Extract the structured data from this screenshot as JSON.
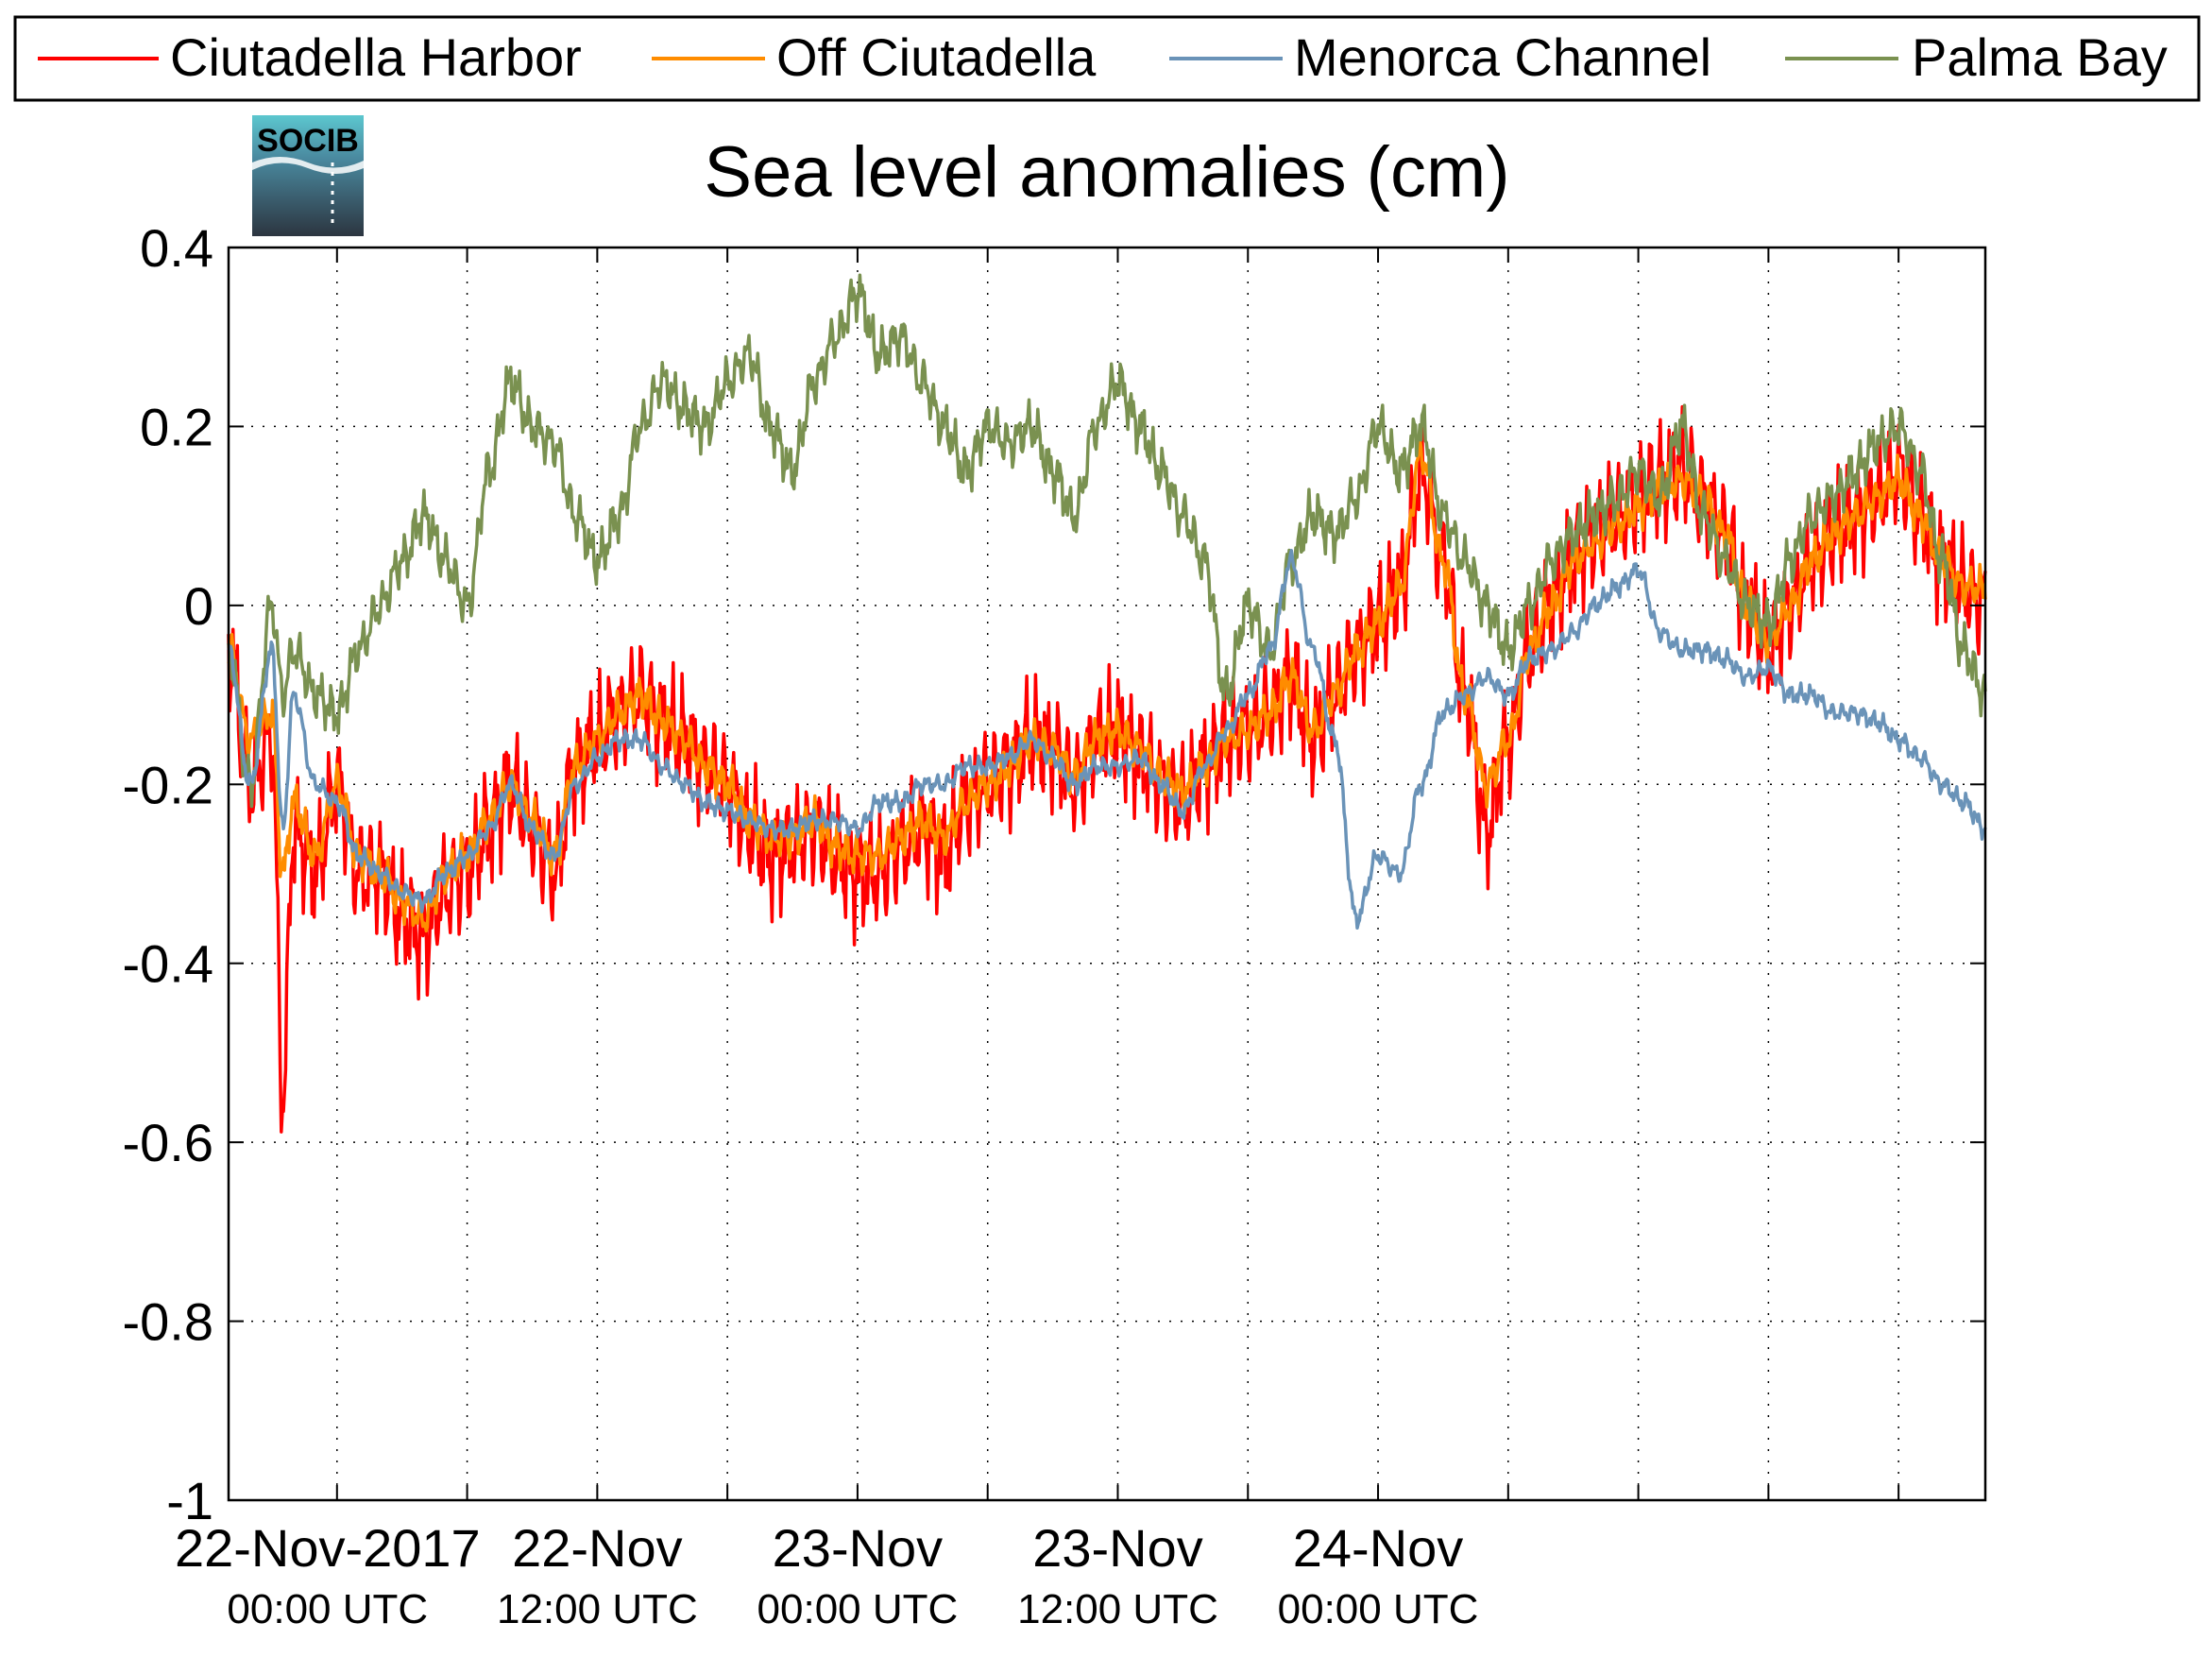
{
  "logo": {
    "text": "SOCIB"
  },
  "chart_data": {
    "type": "line",
    "title": "Sea level anomalies (cm)",
    "xlabel": "",
    "ylabel": "",
    "ylim": [
      -1,
      0.4
    ],
    "yticks": [
      0.4,
      0.2,
      0,
      -0.2,
      -0.4,
      -0.6,
      -0.8,
      -1
    ],
    "ytick_labels": [
      "0.4",
      "0.2",
      "0",
      "-0.2",
      "-0.4",
      "-0.6",
      "-0.8",
      "-1"
    ],
    "xlim_hours": [
      -5,
      76
    ],
    "xtick_hours": [
      0,
      12,
      24,
      36,
      48
    ],
    "xtick_labels": [
      {
        "date": "22-Nov-2017",
        "time": "00:00 UTC"
      },
      {
        "date": "22-Nov",
        "time": "12:00 UTC"
      },
      {
        "date": "23-Nov",
        "time": "00:00 UTC"
      },
      {
        "date": "23-Nov",
        "time": "12:00 UTC"
      },
      {
        "date": "24-Nov",
        "time": "00:00 UTC"
      }
    ],
    "grid": true,
    "legend_position": "top",
    "series": [
      {
        "name": "Ciutadella Harbor",
        "color": "#ff0000",
        "noise_amplitude": 0.07,
        "x": [
          -5,
          -4,
          -3,
          -2.5,
          -2,
          -1,
          0,
          1,
          2,
          3,
          4,
          5,
          6,
          7,
          8,
          9,
          10,
          11,
          12,
          13,
          14,
          15,
          16,
          17,
          18,
          19,
          20,
          21,
          22,
          23,
          24,
          25,
          26,
          27,
          28,
          29,
          30,
          31,
          32,
          33,
          34,
          35,
          36,
          37,
          38,
          39,
          40,
          41,
          42,
          43,
          44,
          45,
          46,
          47,
          48,
          49,
          50,
          51,
          52,
          53,
          54,
          55,
          56,
          57,
          58,
          59,
          60,
          61,
          62,
          63,
          64,
          65,
          66,
          67,
          68,
          69,
          70,
          71,
          72,
          73,
          74,
          75,
          76
        ],
        "y": [
          -0.05,
          -0.2,
          -0.15,
          -0.55,
          -0.25,
          -0.3,
          -0.2,
          -0.3,
          -0.3,
          -0.35,
          -0.37,
          -0.32,
          -0.3,
          -0.25,
          -0.2,
          -0.25,
          -0.3,
          -0.18,
          -0.15,
          -0.12,
          -0.1,
          -0.13,
          -0.15,
          -0.18,
          -0.2,
          -0.25,
          -0.28,
          -0.27,
          -0.25,
          -0.28,
          -0.3,
          -0.3,
          -0.27,
          -0.25,
          -0.28,
          -0.22,
          -0.2,
          -0.18,
          -0.15,
          -0.16,
          -0.2,
          -0.15,
          -0.14,
          -0.17,
          -0.2,
          -0.22,
          -0.18,
          -0.15,
          -0.14,
          -0.12,
          -0.08,
          -0.15,
          -0.1,
          -0.05,
          -0.02,
          0.02,
          0.15,
          0.05,
          -0.1,
          -0.25,
          -0.15,
          -0.05,
          0.0,
          0.05,
          0.08,
          0.1,
          0.12,
          0.14,
          0.15,
          0.12,
          0.08,
          0.0,
          -0.05,
          0.0,
          0.05,
          0.08,
          0.1,
          0.12,
          0.15,
          0.1,
          0.05,
          0.02,
          0.0
        ]
      },
      {
        "name": "Off Ciutadella",
        "color": "#ff8c00",
        "noise_amplitude": 0.025,
        "x": [
          -5,
          -4,
          -3,
          -2.5,
          -2,
          -1,
          0,
          1,
          2,
          3,
          4,
          5,
          6,
          7,
          8,
          9,
          10,
          11,
          12,
          13,
          14,
          15,
          16,
          17,
          18,
          19,
          20,
          21,
          22,
          23,
          24,
          25,
          26,
          27,
          28,
          29,
          30,
          31,
          32,
          33,
          34,
          35,
          36,
          37,
          38,
          39,
          40,
          41,
          42,
          43,
          44,
          45,
          46,
          47,
          48,
          49,
          50,
          51,
          52,
          53,
          54,
          55,
          56,
          57,
          58,
          59,
          60,
          61,
          62,
          63,
          64,
          65,
          66,
          67,
          68,
          69,
          70,
          71,
          72,
          73,
          74,
          75,
          76
        ],
        "y": [
          -0.05,
          -0.15,
          -0.12,
          -0.3,
          -0.22,
          -0.28,
          -0.2,
          -0.28,
          -0.3,
          -0.33,
          -0.35,
          -0.3,
          -0.28,
          -0.24,
          -0.2,
          -0.24,
          -0.28,
          -0.18,
          -0.15,
          -0.12,
          -0.1,
          -0.13,
          -0.15,
          -0.18,
          -0.2,
          -0.24,
          -0.26,
          -0.26,
          -0.24,
          -0.27,
          -0.28,
          -0.28,
          -0.26,
          -0.24,
          -0.26,
          -0.22,
          -0.2,
          -0.18,
          -0.15,
          -0.16,
          -0.19,
          -0.15,
          -0.14,
          -0.16,
          -0.19,
          -0.21,
          -0.18,
          -0.15,
          -0.14,
          -0.12,
          -0.08,
          -0.14,
          -0.1,
          -0.05,
          -0.02,
          0.02,
          0.17,
          0.05,
          -0.1,
          -0.2,
          -0.15,
          -0.05,
          0.0,
          0.05,
          0.07,
          0.09,
          0.11,
          0.13,
          0.14,
          0.12,
          0.08,
          0.0,
          -0.04,
          0.0,
          0.05,
          0.08,
          0.1,
          0.12,
          0.14,
          0.1,
          0.05,
          0.02,
          0.02
        ]
      },
      {
        "name": "Menorca Channel",
        "color": "#6a93b8",
        "noise_amplitude": 0.012,
        "x": [
          -5,
          -4,
          -3,
          -2.5,
          -2,
          -1,
          0,
          1,
          2,
          3,
          4,
          5,
          6,
          7,
          8,
          9,
          10,
          11,
          12,
          13,
          14,
          15,
          16,
          17,
          18,
          19,
          20,
          21,
          22,
          23,
          24,
          25,
          26,
          27,
          28,
          29,
          30,
          31,
          32,
          33,
          34,
          35,
          36,
          37,
          38,
          39,
          40,
          41,
          42,
          43,
          44,
          45,
          46,
          47,
          48,
          49,
          50,
          51,
          52,
          53,
          54,
          55,
          56,
          57,
          58,
          59,
          60,
          61,
          62,
          63,
          64,
          65,
          66,
          67,
          68,
          69,
          70,
          71,
          72,
          73,
          74,
          75,
          76
        ],
        "y": [
          -0.05,
          -0.2,
          -0.05,
          -0.25,
          -0.1,
          -0.2,
          -0.22,
          -0.28,
          -0.3,
          -0.32,
          -0.33,
          -0.3,
          -0.28,
          -0.25,
          -0.2,
          -0.25,
          -0.28,
          -0.2,
          -0.17,
          -0.15,
          -0.15,
          -0.18,
          -0.2,
          -0.22,
          -0.23,
          -0.24,
          -0.25,
          -0.25,
          -0.24,
          -0.24,
          -0.25,
          -0.22,
          -0.22,
          -0.2,
          -0.2,
          -0.18,
          -0.18,
          -0.17,
          -0.15,
          -0.17,
          -0.2,
          -0.18,
          -0.18,
          -0.17,
          -0.2,
          -0.23,
          -0.18,
          -0.14,
          -0.1,
          -0.05,
          0.05,
          -0.05,
          -0.15,
          -0.35,
          -0.28,
          -0.3,
          -0.2,
          -0.12,
          -0.1,
          -0.08,
          -0.1,
          -0.06,
          -0.05,
          -0.03,
          0.0,
          0.02,
          0.04,
          -0.03,
          -0.05,
          -0.05,
          -0.06,
          -0.08,
          -0.07,
          -0.1,
          -0.1,
          -0.12,
          -0.12,
          -0.13,
          -0.15,
          -0.17,
          -0.2,
          -0.22,
          -0.25
        ]
      },
      {
        "name": "Palma Bay",
        "color": "#7a9150",
        "noise_amplitude": 0.03,
        "x": [
          -5,
          -4,
          -3,
          -2.5,
          -2,
          -1,
          0,
          1,
          2,
          3,
          4,
          5,
          6,
          7,
          8,
          9,
          10,
          11,
          12,
          13,
          14,
          15,
          16,
          17,
          18,
          19,
          20,
          21,
          22,
          23,
          24,
          25,
          26,
          27,
          28,
          29,
          30,
          31,
          32,
          33,
          34,
          35,
          36,
          37,
          38,
          39,
          40,
          41,
          42,
          43,
          44,
          45,
          46,
          47,
          48,
          49,
          50,
          51,
          52,
          53,
          54,
          55,
          56,
          57,
          58,
          59,
          60,
          61,
          62,
          63,
          64,
          65,
          66,
          67,
          68,
          69,
          70,
          71,
          72,
          73,
          74,
          75,
          76
        ],
        "y": [
          -0.05,
          -0.2,
          0.0,
          -0.1,
          -0.05,
          -0.1,
          -0.12,
          -0.05,
          0.0,
          0.05,
          0.1,
          0.05,
          0.0,
          0.15,
          0.25,
          0.2,
          0.18,
          0.1,
          0.05,
          0.1,
          0.2,
          0.25,
          0.22,
          0.2,
          0.25,
          0.28,
          0.2,
          0.15,
          0.25,
          0.3,
          0.35,
          0.28,
          0.3,
          0.25,
          0.2,
          0.15,
          0.2,
          0.18,
          0.2,
          0.15,
          0.1,
          0.2,
          0.25,
          0.2,
          0.15,
          0.1,
          0.05,
          -0.1,
          0.0,
          -0.05,
          0.05,
          0.1,
          0.08,
          0.12,
          0.2,
          0.15,
          0.2,
          0.1,
          0.05,
          0.0,
          -0.05,
          0.0,
          0.05,
          0.08,
          0.1,
          0.12,
          0.15,
          0.12,
          0.2,
          0.1,
          0.05,
          0.0,
          -0.02,
          0.05,
          0.1,
          0.12,
          0.15,
          0.18,
          0.2,
          0.15,
          0.05,
          -0.05,
          -0.1
        ]
      }
    ]
  }
}
